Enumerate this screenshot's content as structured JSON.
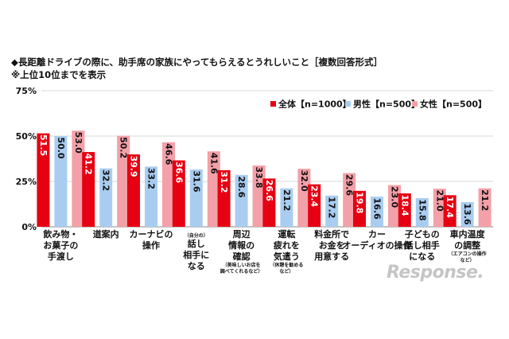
{
  "header": {
    "title": "◆長距離ドライブの際に、助手席の家族にやってもらえるとうれしいこと［複数回答形式］",
    "subtitle": "※上位10位までを表示"
  },
  "watermark": "Response.",
  "chart_data": {
    "type": "bar",
    "ylim": [
      0,
      75
    ],
    "yticks": [
      "0%",
      "25%",
      "50%",
      "75%"
    ],
    "legend_position": "top-right",
    "categories": [
      {
        "lines": [
          "飲み物・",
          "お菓子の",
          "手渡し"
        ],
        "note": []
      },
      {
        "lines": [
          "道案内"
        ],
        "note": []
      },
      {
        "lines": [
          "カーナビの",
          "操作"
        ],
        "note": []
      },
      {
        "lines": [
          "話し",
          "相手に",
          "なる"
        ],
        "note": [
          "（自分の）"
        ]
      },
      {
        "lines": [
          "周辺",
          "情報の",
          "確認"
        ],
        "note": [
          "（美味しいお店を",
          "調べてくれるなど）"
        ]
      },
      {
        "lines": [
          "運転",
          "疲れを",
          "気遣う"
        ],
        "note": [
          "（休憩を勧める",
          "など）"
        ]
      },
      {
        "lines": [
          "料金所で",
          "お金を",
          "用意する"
        ],
        "note": []
      },
      {
        "lines": [
          "カー",
          "オーディオの操作"
        ],
        "note": []
      },
      {
        "lines": [
          "子どもの",
          "話し相手",
          "になる"
        ],
        "note": []
      },
      {
        "lines": [
          "車内温度",
          "の調整"
        ],
        "note": [
          "（エアコンの操作",
          "など）"
        ]
      }
    ],
    "series": [
      {
        "name": "全体【n=1000】",
        "color": "#e60012",
        "text_color": "#ffffff",
        "values": [
          51.5,
          41.2,
          39.9,
          36.6,
          31.2,
          26.6,
          23.4,
          19.8,
          18.4,
          17.4
        ]
      },
      {
        "name": "男性【n=500】",
        "color": "#a9cdf0",
        "text_color": "#111111",
        "values": [
          50.0,
          32.2,
          33.2,
          31.6,
          28.6,
          21.2,
          17.2,
          16.6,
          15.8,
          13.6
        ]
      },
      {
        "name": "女性【n=500】",
        "color": "#f4a0a8",
        "text_color": "#111111",
        "values": [
          53.0,
          50.2,
          46.6,
          41.6,
          33.8,
          32.0,
          29.6,
          23.0,
          21.0,
          21.2
        ]
      }
    ]
  }
}
